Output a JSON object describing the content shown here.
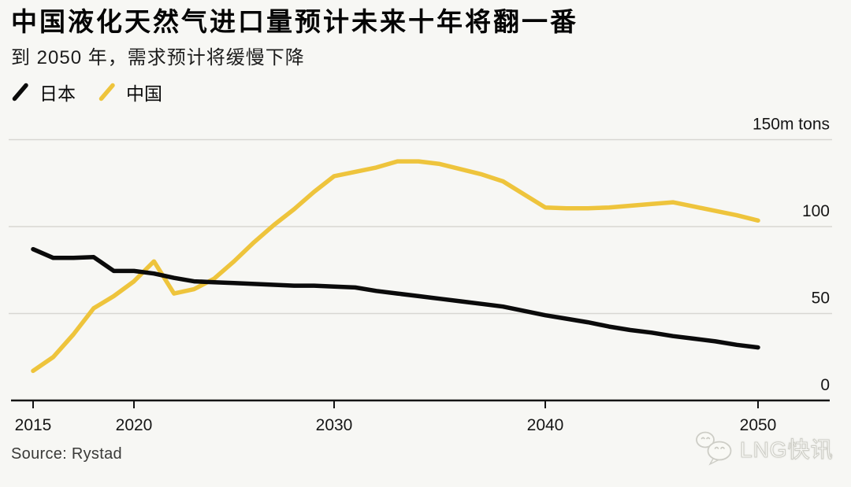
{
  "header": {
    "title": "中国液化天然气进口量预计未来十年将翻一番",
    "subtitle": "到 2050 年，需求预计将缓慢下降"
  },
  "legend": [
    {
      "label": "日本",
      "color": "#0b0b0b"
    },
    {
      "label": "中国",
      "color": "#eec43c"
    }
  ],
  "footer": {
    "source": "Source: Rystad",
    "watermark_text": "LNG快讯"
  },
  "chart_data": {
    "type": "line",
    "title": "中国液化天然气进口量预计未来十年将翻一番",
    "subtitle": "到 2050 年，需求预计将缓慢下降",
    "unit_label": "150m tons",
    "xlabel": "",
    "ylabel": "m tons",
    "xlim": [
      2015,
      2050
    ],
    "ylim": [
      0,
      150
    ],
    "grid": true,
    "legend_position": "top-left",
    "x_ticks": [
      2015,
      2020,
      2030,
      2040,
      2050
    ],
    "y_ticks": [
      0,
      50,
      100,
      150
    ],
    "y_tick_labels": [
      "0",
      "50",
      "100",
      "150m tons"
    ],
    "x": [
      2015,
      2016,
      2017,
      2018,
      2019,
      2020,
      2021,
      2022,
      2023,
      2024,
      2025,
      2026,
      2027,
      2028,
      2029,
      2030,
      2031,
      2032,
      2033,
      2034,
      2035,
      2036,
      2037,
      2038,
      2039,
      2040,
      2041,
      2042,
      2043,
      2044,
      2045,
      2046,
      2047,
      2048,
      2049,
      2050
    ],
    "series": [
      {
        "name": "日本",
        "color": "#0b0b0b",
        "values": [
          87,
          82,
          82,
          82.5,
          74.5,
          74.5,
          73,
          70.5,
          68.5,
          68,
          67.5,
          67,
          66.5,
          66,
          66,
          65.5,
          65,
          63,
          61.5,
          60,
          58.5,
          57,
          55.5,
          54,
          51.5,
          49,
          47,
          45,
          42.5,
          40.5,
          39,
          37,
          35.5,
          34,
          32,
          30.5
        ]
      },
      {
        "name": "中国",
        "color": "#eec43c",
        "values": [
          17,
          25,
          38,
          53,
          60,
          68.5,
          80,
          61.5,
          64,
          70,
          80,
          91,
          101,
          110,
          120,
          129,
          131.5,
          134,
          137.5,
          137.5,
          136,
          133,
          130,
          126,
          118.5,
          111,
          110.5,
          110.5,
          111,
          112,
          113,
          114,
          111.5,
          109,
          106.5,
          103.5
        ]
      }
    ]
  }
}
